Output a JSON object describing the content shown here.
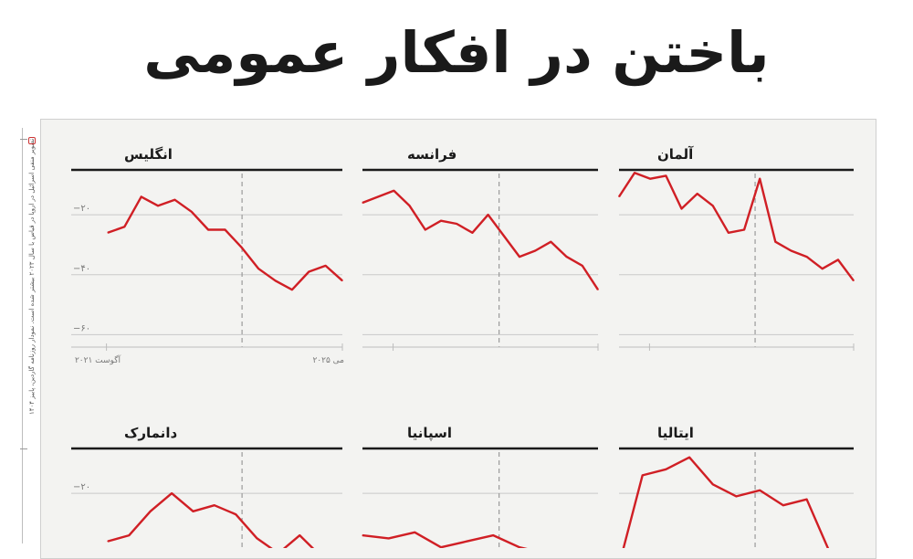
{
  "headline": "باختن در افکار عمومی",
  "side_caption": "تصویر منفی اسرائیل در اروپا در قیاس با سال ۲۰۲۳ بیشتر شده است. نمودار روزنامه گاردین، پاییز ۱۴۰۴",
  "colors": {
    "line": "#d01f25",
    "grid": "#c9c9c9",
    "divider": "#9a9a9a",
    "background": "#f3f3f1"
  },
  "chart_data": [
    {
      "type": "line",
      "title": "انگلیس",
      "y_ticks": [
        -20,
        -40,
        -60
      ],
      "y_tick_labels": [
        "−۲۰",
        "−۴۰",
        "−۶۰"
      ],
      "ylim": [
        -62,
        -9
      ],
      "x_labels": [
        "آگوست ۲۰۲۱",
        "می ۲۰۲۵"
      ],
      "values": [
        -26,
        -24,
        -14,
        -17,
        -15,
        -19,
        -25,
        -25,
        -31,
        -38,
        -42,
        -45,
        -39,
        -37,
        -42
      ]
    },
    {
      "type": "line",
      "title": "فرانسه",
      "y_ticks": [
        -20,
        -40,
        -60
      ],
      "ylim": [
        -62,
        -9
      ],
      "values": [
        -16,
        -14,
        -12,
        -17,
        -25,
        -22,
        -23,
        -26,
        -20,
        -27,
        -34,
        -32,
        -29,
        -34,
        -37,
        -45
      ]
    },
    {
      "type": "line",
      "title": "آلمان",
      "y_ticks": [
        -20,
        -40,
        -60
      ],
      "ylim": [
        -62,
        -9
      ],
      "values": [
        -14,
        -6,
        -8,
        -7,
        -18,
        -13,
        -17,
        -26,
        -25,
        -8,
        -29,
        -32,
        -34,
        -38,
        -35,
        -42
      ]
    },
    {
      "type": "line",
      "title": "دانمارک",
      "y_ticks": [
        -20
      ],
      "y_tick_labels": [
        "−۲۰"
      ],
      "ylim": [
        -62,
        -9
      ],
      "values": [
        -36,
        -34,
        -26,
        -20,
        -26,
        -24,
        -27,
        -35,
        -40,
        -34,
        -41,
        -45
      ]
    },
    {
      "type": "line",
      "title": "اسپانیا",
      "y_ticks": [
        -20
      ],
      "ylim": [
        -62,
        -9
      ],
      "values": [
        -34,
        -35,
        -33,
        -38,
        -36,
        -34,
        -38,
        -40,
        -42,
        -44
      ]
    },
    {
      "type": "line",
      "title": "ایتالیا",
      "y_ticks": [
        -20
      ],
      "ylim": [
        -62,
        -9
      ],
      "values": [
        -44,
        -14,
        -12,
        -8,
        -17,
        -21,
        -19,
        -24,
        -22,
        -40,
        -46
      ]
    }
  ]
}
